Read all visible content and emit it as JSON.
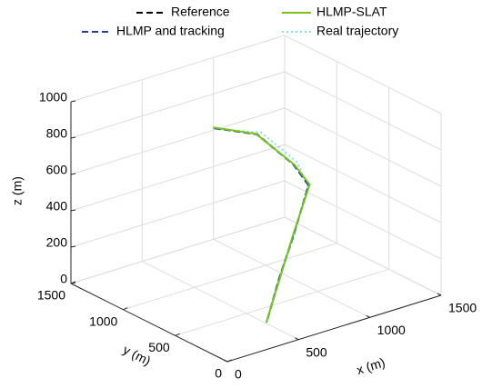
{
  "chart_data": {
    "type": "line3d",
    "xlabel": "x (m)",
    "ylabel": "y (m)",
    "zlabel": "z (m)",
    "xlim": [
      0,
      1500
    ],
    "ylim": [
      0,
      1500
    ],
    "zlim": [
      0,
      1000
    ],
    "xticks": [
      0,
      500,
      1000,
      1500
    ],
    "yticks": [
      0,
      500,
      1000,
      1500
    ],
    "zticks": [
      0,
      200,
      400,
      600,
      800,
      1000
    ],
    "grid": true,
    "legend": "top",
    "series": [
      {
        "name": "Reference",
        "color": "#000000",
        "style": "dashed",
        "x": [
          708,
          900,
          1050,
          1097,
          900,
          700,
          508
        ],
        "y": [
          1098,
          950,
          800,
          716,
          600,
          460,
          319
        ],
        "z": [
          800,
          760,
          600,
          500,
          300,
          150,
          0
        ]
      },
      {
        "name": "HLMP and tracking",
        "color": "#1f3fa0",
        "style": "dashed",
        "x": [
          710,
          905,
          1048,
          1095,
          902,
          698,
          510
        ],
        "y": [
          1095,
          948,
          802,
          718,
          598,
          462,
          320
        ],
        "z": [
          798,
          758,
          602,
          498,
          302,
          148,
          0
        ]
      },
      {
        "name": "HLMP-SLAT",
        "color": "#77c41f",
        "style": "solid",
        "x": [
          705,
          898,
          1055,
          1100,
          898,
          702,
          506
        ],
        "y": [
          1100,
          952,
          798,
          714,
          602,
          458,
          318
        ],
        "z": [
          802,
          762,
          598,
          502,
          298,
          152,
          0
        ]
      },
      {
        "name": "Real trajectory",
        "color": "#86dde6",
        "style": "dotted",
        "x": [
          712,
          920,
          1070,
          1090,
          905,
          700,
          509
        ],
        "y": [
          1090,
          930,
          790,
          720,
          597,
          461,
          320
        ],
        "z": [
          795,
          770,
          610,
          495,
          301,
          149,
          0
        ]
      }
    ]
  }
}
